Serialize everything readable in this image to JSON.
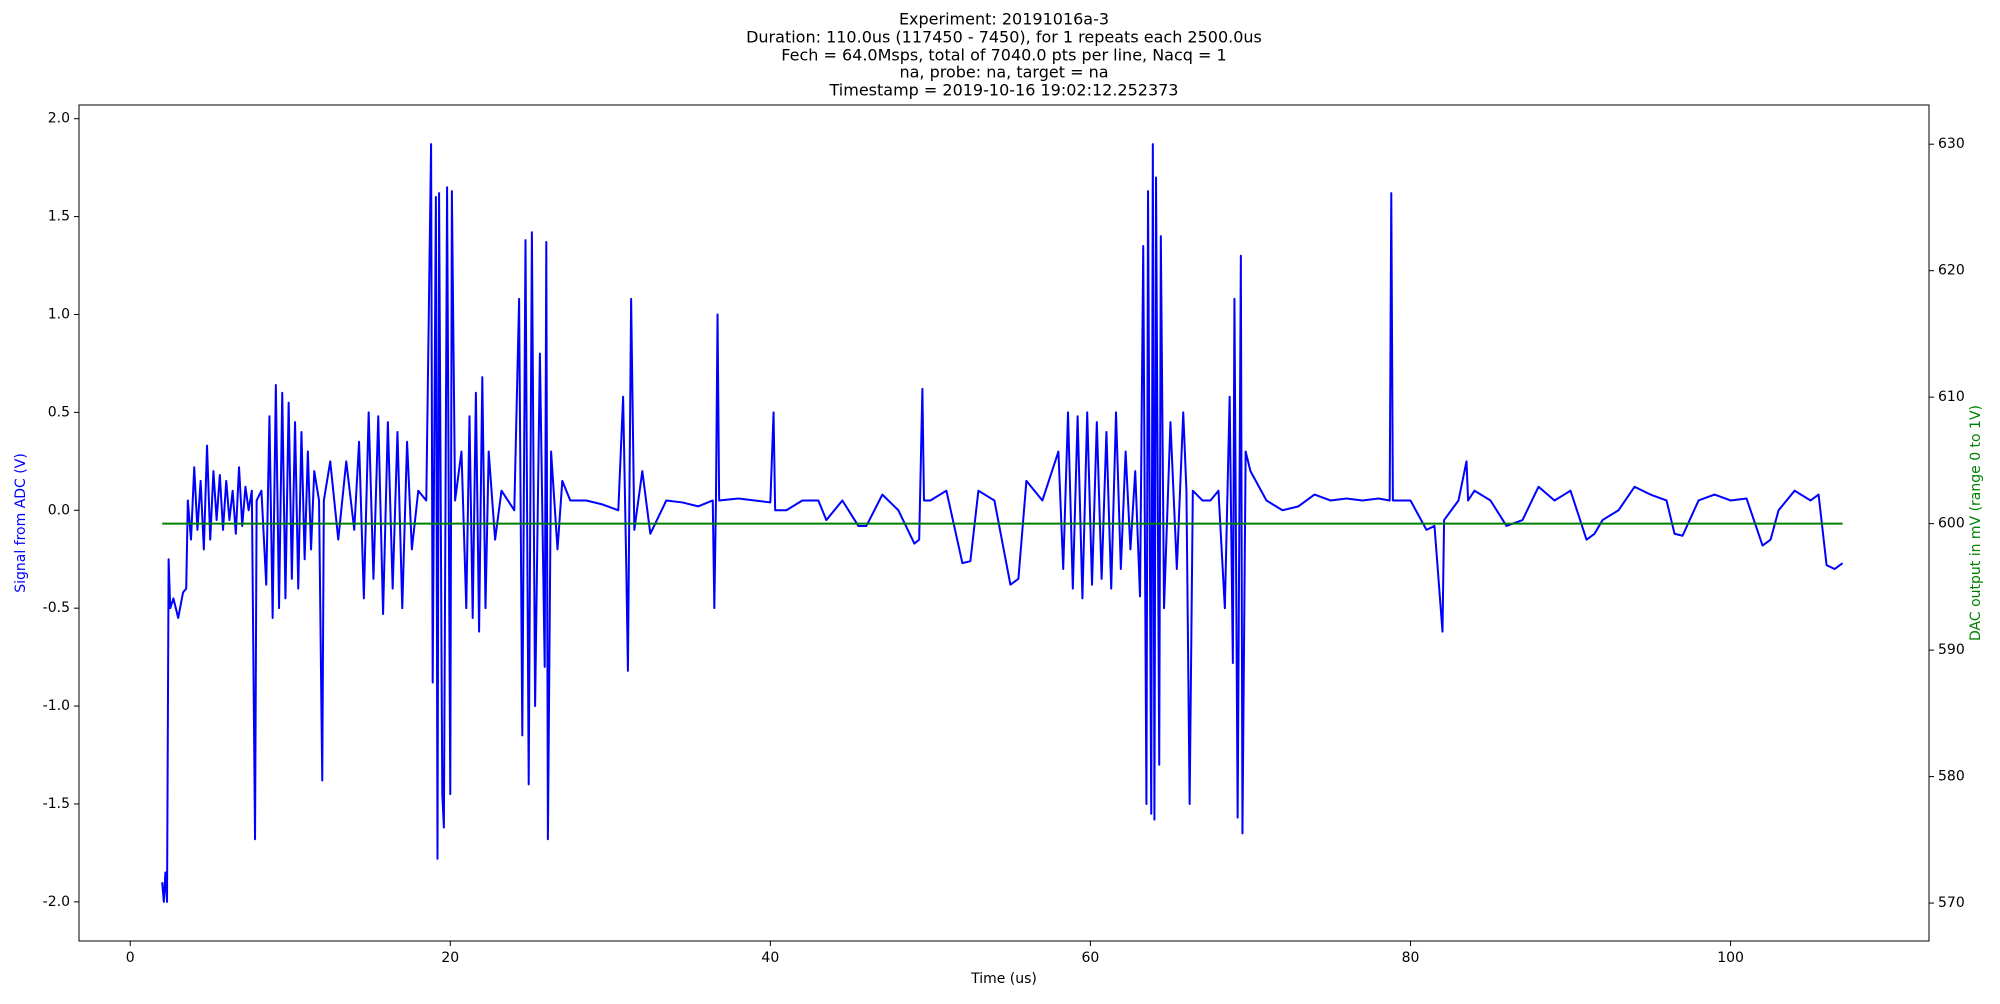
{
  "chart_data": {
    "type": "line",
    "title": [
      "Experiment: 20191016a-3",
      "Duration: 110.0us (117450 - 7450), for 1 repeats each 2500.0us",
      "Fech = 64.0Msps, total of 7040.0 pts per line, Nacq = 1",
      "na, probe: na, target = na",
      "Timestamp = 2019-10-16 19:02:12.252373"
    ],
    "xlabel": "Time (us)",
    "ylabel": "Signal from ADC (V)",
    "y2label": "DAC output in mV (range 0 to 1V)",
    "ylabel_color": "#0000ff",
    "y2label_color": "#008000",
    "xlim": [
      -3.2,
      112.4
    ],
    "xticks": [
      0,
      20,
      40,
      60,
      80,
      100
    ],
    "ylim": [
      -2.2,
      2.07
    ],
    "yticks": [
      {
        "value": -2,
        "label": "-2.0"
      },
      -1.5,
      {
        "value": -1,
        "label": "-1.0"
      },
      -0.5,
      {
        "value": 0,
        "label": "0.0"
      },
      0.5,
      {
        "value": 1,
        "label": "1.0"
      },
      1.5,
      {
        "value": 2,
        "label": "2.0"
      }
    ],
    "y2lim": [
      567,
      633.1
    ],
    "y2ticks": [
      570,
      580,
      590,
      600,
      610,
      620,
      630
    ],
    "series": [
      {
        "color": "#0000ff",
        "axis": "y",
        "x": [
          2.0,
          2.1,
          2.2,
          2.3,
          2.4,
          2.5,
          2.7,
          3.0,
          3.3,
          3.5,
          3.6,
          3.8,
          4.0,
          4.2,
          4.4,
          4.6,
          4.8,
          5.0,
          5.2,
          5.4,
          5.6,
          5.8,
          6.0,
          6.2,
          6.4,
          6.6,
          6.8,
          7.0,
          7.2,
          7.4,
          7.6,
          7.8,
          7.9,
          8.2,
          8.5,
          8.7,
          8.9,
          9.1,
          9.3,
          9.5,
          9.7,
          9.9,
          10.1,
          10.3,
          10.5,
          10.7,
          10.9,
          11.1,
          11.3,
          11.5,
          11.8,
          12.0,
          12.1,
          12.5,
          13.0,
          13.5,
          14.0,
          14.3,
          14.6,
          14.9,
          15.2,
          15.5,
          15.8,
          16.1,
          16.4,
          16.7,
          17.0,
          17.3,
          17.6,
          18.0,
          18.5,
          18.8,
          18.9,
          19.1,
          19.2,
          19.3,
          19.5,
          19.6,
          19.8,
          20.0,
          20.1,
          20.3,
          20.7,
          21.0,
          21.2,
          21.4,
          21.6,
          21.8,
          22.0,
          22.2,
          22.4,
          22.8,
          23.2,
          23.6,
          24.0,
          24.3,
          24.5,
          24.7,
          24.9,
          25.1,
          25.3,
          25.6,
          25.9,
          26.0,
          26.1,
          26.3,
          26.7,
          27.0,
          27.5,
          28.5,
          29.5,
          30.5,
          30.8,
          31.0,
          31.1,
          31.3,
          31.5,
          32.0,
          32.5,
          33.5,
          34.5,
          35.5,
          36.4,
          36.5,
          36.6,
          36.7,
          36.8,
          38.0,
          40.0,
          40.2,
          40.3,
          41.0,
          42.0,
          43.0,
          43.5,
          44.5,
          45.5,
          46.0,
          47.0,
          48.0,
          49.0,
          49.3,
          49.5,
          49.6,
          50.0,
          51.0,
          52.0,
          52.5,
          53.0,
          54.0,
          55.0,
          55.5,
          56.0,
          57.0,
          58.0,
          58.3,
          58.6,
          58.9,
          59.2,
          59.5,
          59.8,
          60.1,
          60.4,
          60.7,
          61.0,
          61.3,
          61.6,
          61.9,
          62.2,
          62.5,
          62.8,
          63.1,
          63.3,
          63.5,
          63.6,
          63.8,
          63.9,
          64.0,
          64.1,
          64.3,
          64.4,
          64.6,
          65.0,
          65.4,
          65.8,
          66.0,
          66.2,
          66.4,
          67.0,
          67.5,
          68.0,
          68.4,
          68.7,
          68.9,
          69.0,
          69.2,
          69.4,
          69.5,
          69.7,
          70.0,
          71.0,
          72.0,
          73.0,
          74.0,
          75.0,
          76.0,
          77.0,
          78.0,
          78.7,
          78.8,
          78.9,
          80.0,
          81.0,
          81.5,
          82.0,
          82.1,
          83.0,
          83.5,
          83.6,
          84.0,
          85.0,
          86.0,
          87.0,
          88.0,
          89.0,
          90.0,
          91.0,
          91.5,
          92.0,
          93.0,
          94.0,
          95.0,
          96.0,
          96.5,
          97.0,
          98.0,
          99.0,
          100.0,
          101.0,
          102.0,
          102.5,
          103.0,
          104.0,
          105.0,
          105.5,
          106.0,
          106.5,
          107.0
        ],
        "values": [
          -1.9,
          -2.0,
          -1.85,
          -2.0,
          -0.25,
          -0.5,
          -0.45,
          -0.55,
          -0.42,
          -0.4,
          0.05,
          -0.15,
          0.22,
          -0.1,
          0.15,
          -0.2,
          0.33,
          -0.15,
          0.2,
          -0.05,
          0.18,
          -0.1,
          0.15,
          -0.05,
          0.1,
          -0.12,
          0.22,
          -0.08,
          0.12,
          0.0,
          0.1,
          -1.68,
          0.05,
          0.1,
          -0.38,
          0.48,
          -0.55,
          0.64,
          -0.5,
          0.6,
          -0.45,
          0.55,
          -0.35,
          0.45,
          -0.4,
          0.4,
          -0.25,
          0.3,
          -0.2,
          0.2,
          0.05,
          -1.38,
          0.05,
          0.25,
          -0.15,
          0.25,
          -0.1,
          0.35,
          -0.45,
          0.5,
          -0.35,
          0.48,
          -0.53,
          0.45,
          -0.4,
          0.4,
          -0.5,
          0.35,
          -0.2,
          0.1,
          0.05,
          1.87,
          -0.88,
          1.6,
          -1.78,
          1.62,
          -1.45,
          -1.62,
          1.65,
          -1.45,
          1.63,
          0.05,
          0.3,
          -0.5,
          0.48,
          -0.55,
          0.6,
          -0.62,
          0.68,
          -0.5,
          0.3,
          -0.15,
          0.1,
          0.05,
          0.0,
          1.08,
          -1.15,
          1.38,
          -1.4,
          1.42,
          -1.0,
          0.8,
          -0.8,
          1.37,
          -1.68,
          0.3,
          -0.2,
          0.15,
          0.05,
          0.05,
          0.03,
          0.0,
          0.58,
          -0.3,
          -0.82,
          1.08,
          -0.1,
          0.2,
          -0.12,
          0.05,
          0.04,
          0.02,
          0.05,
          -0.5,
          0.05,
          1.0,
          0.05,
          0.06,
          0.04,
          0.5,
          0.0,
          0.0,
          0.05,
          0.05,
          -0.05,
          0.05,
          -0.08,
          -0.08,
          0.08,
          0.0,
          -0.17,
          -0.15,
          0.62,
          0.05,
          0.05,
          0.1,
          -0.27,
          -0.26,
          0.1,
          0.05,
          -0.38,
          -0.35,
          0.15,
          0.05,
          0.3,
          -0.3,
          0.5,
          -0.4,
          0.48,
          -0.45,
          0.5,
          -0.38,
          0.45,
          -0.35,
          0.4,
          -0.4,
          0.5,
          -0.3,
          0.3,
          -0.2,
          0.2,
          -0.44,
          1.35,
          -1.5,
          1.63,
          -1.55,
          1.87,
          -1.58,
          1.7,
          -1.3,
          1.4,
          -0.5,
          0.45,
          -0.3,
          0.5,
          0.1,
          -1.5,
          0.1,
          0.05,
          0.05,
          0.1,
          -0.5,
          0.58,
          -0.78,
          1.08,
          -1.57,
          1.3,
          -1.65,
          0.3,
          0.2,
          0.05,
          0.0,
          0.02,
          0.08,
          0.05,
          0.06,
          0.05,
          0.06,
          0.05,
          1.62,
          0.05,
          0.05,
          -0.1,
          -0.08,
          -0.62,
          -0.05,
          0.05,
          0.25,
          0.05,
          0.1,
          0.05,
          -0.08,
          -0.05,
          0.12,
          0.05,
          0.1,
          -0.15,
          -0.12,
          -0.05,
          0.0,
          0.12,
          0.08,
          0.05,
          -0.12,
          -0.13,
          0.05,
          0.08,
          0.05,
          0.06,
          -0.18,
          -0.15,
          0.0,
          0.1,
          0.05,
          0.08,
          -0.28,
          -0.3,
          -0.27
        ]
      },
      {
        "color": "#008000",
        "axis": "y2",
        "x": [
          2,
          107
        ],
        "values": [
          600,
          600
        ]
      }
    ]
  }
}
